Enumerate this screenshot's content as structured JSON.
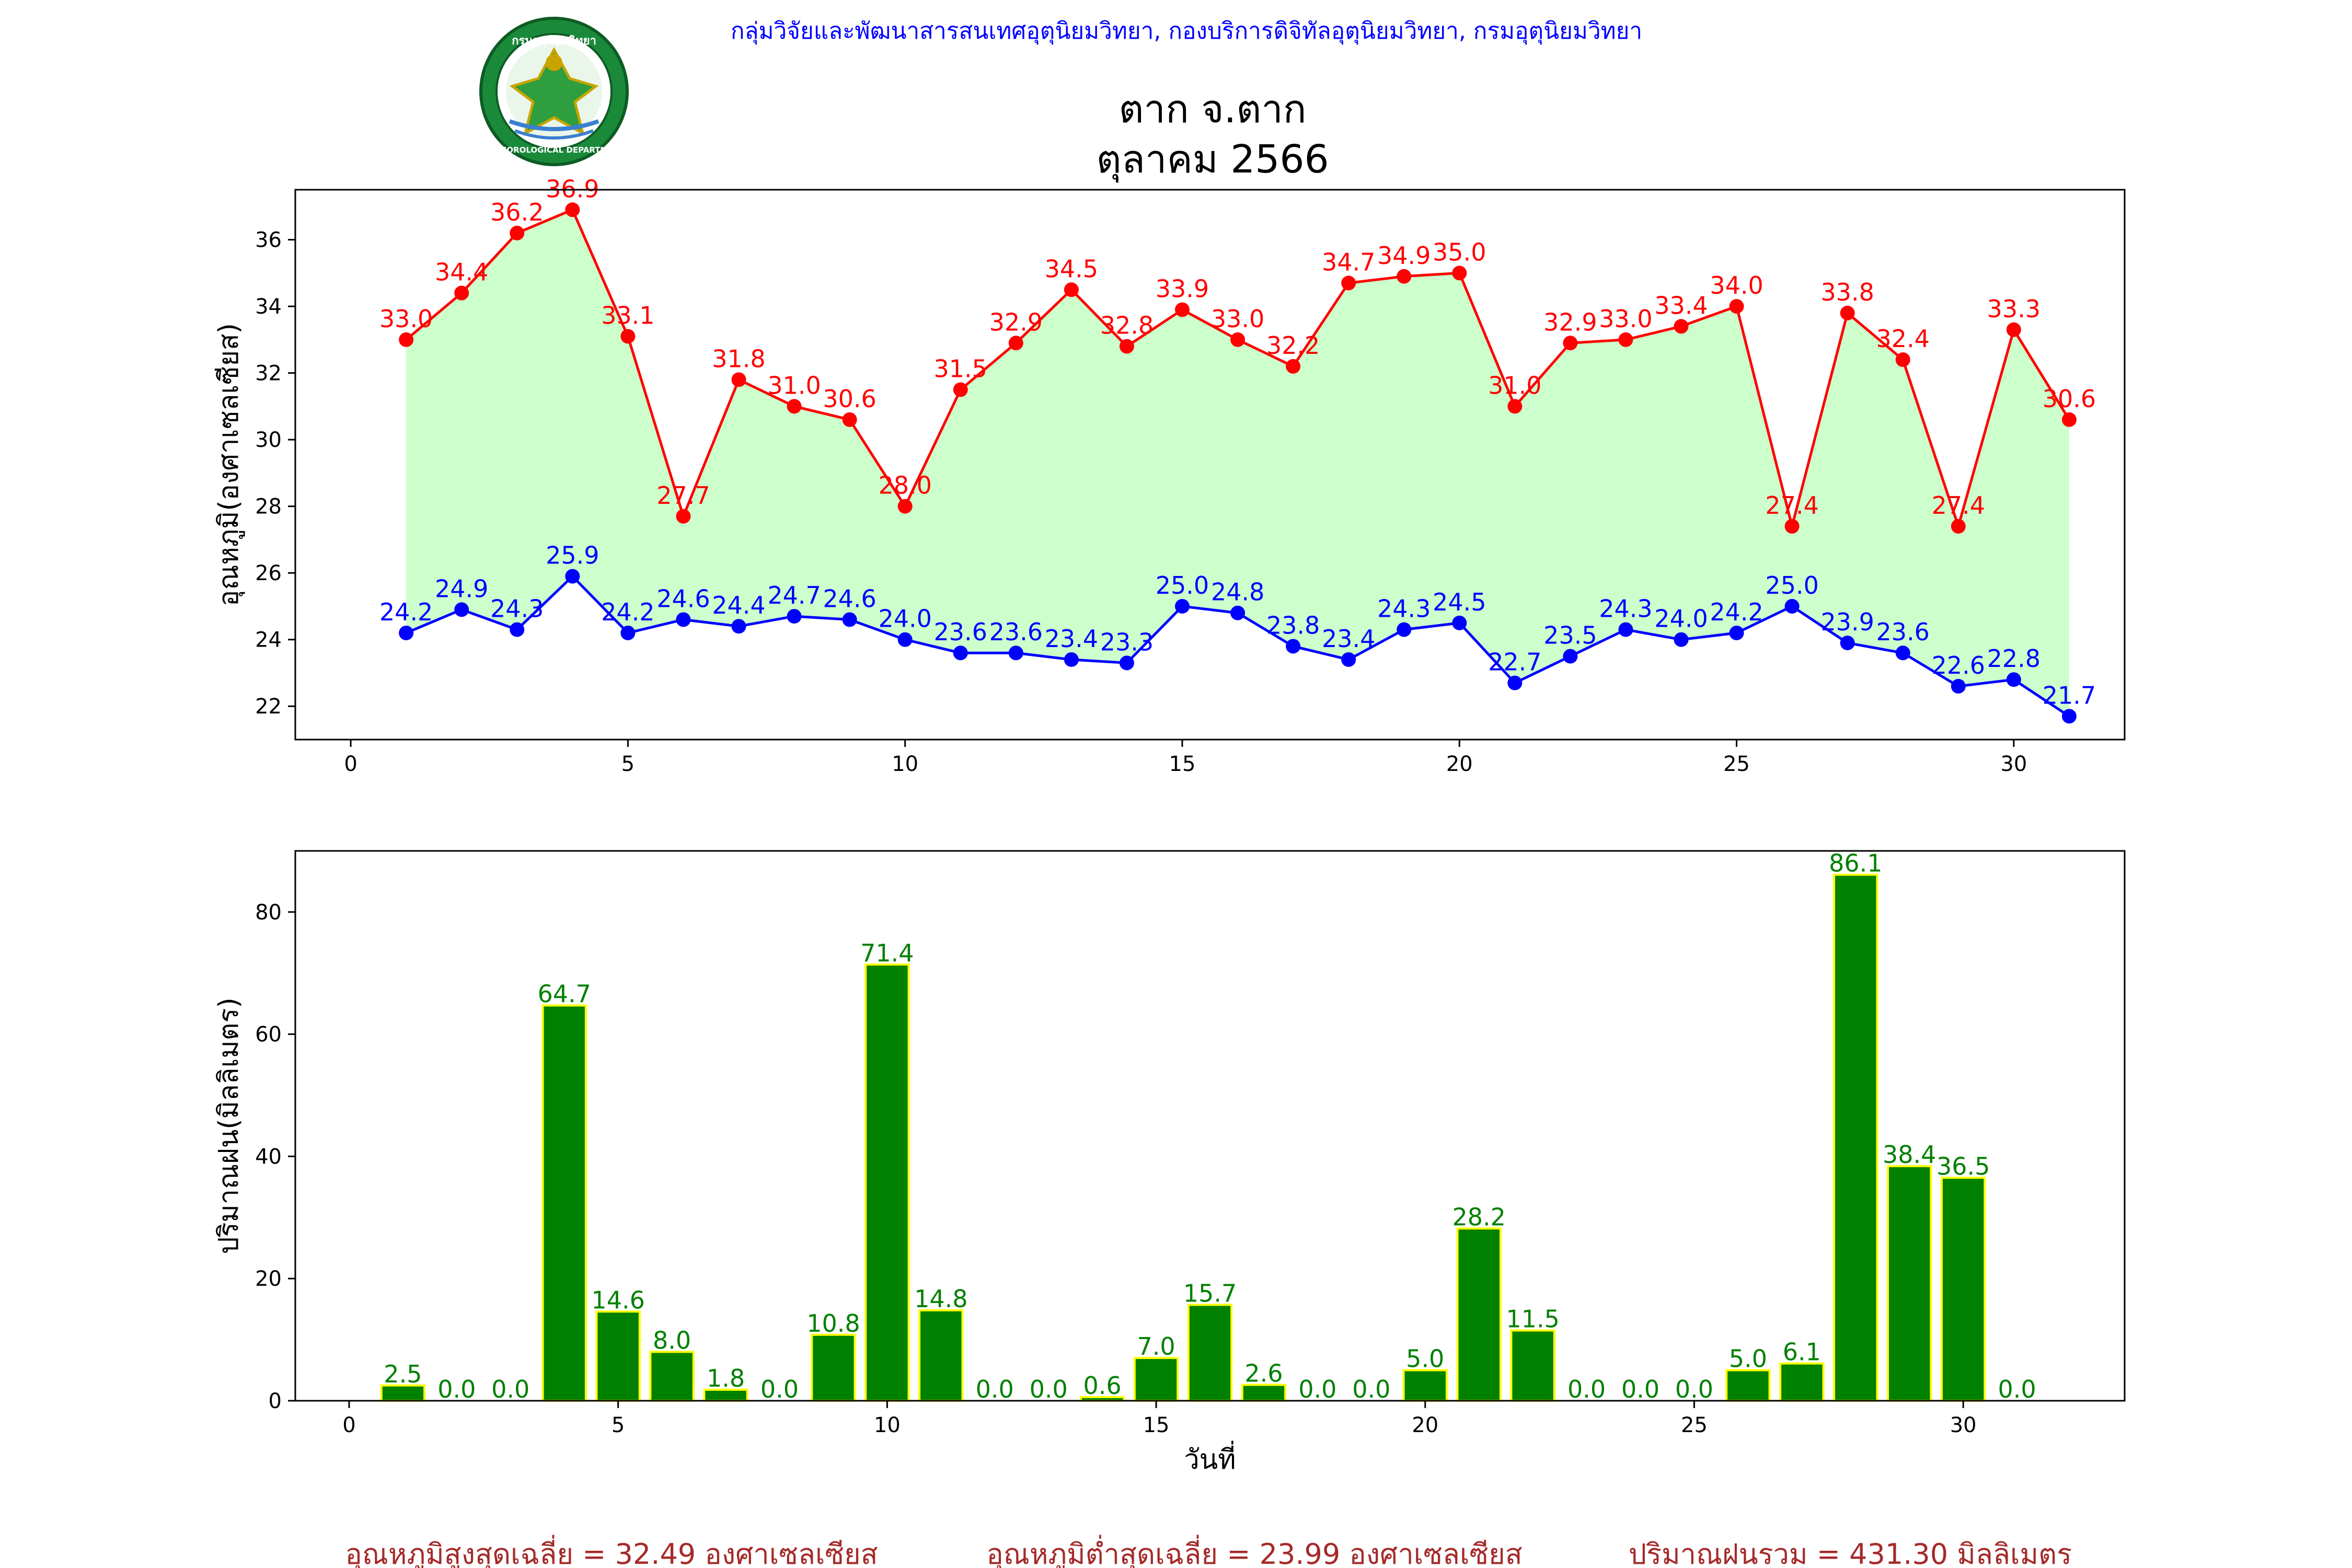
{
  "header": {
    "agency": "กลุ่มวิจัยและพัฒนาสารสนเทศอุตุนิยมวิทยา, กองบริการดิจิทัลอุตุนิยมวิทยา, กรมอุตุนิยมวิทยา",
    "title_line1": "ตาก จ.ตาก",
    "title_line2": "ตุลาคม 2566",
    "logo_text": "METEOROLOGICAL DEPARTMENT",
    "logo_thai": "กรมอุตุนิยมวิทยา"
  },
  "colors": {
    "max_line": "#ff0000",
    "min_line": "#0000ff",
    "fill": "#ccffcc",
    "bar": "#008000",
    "bar_edge": "#ffff00",
    "bar_label": "#008000",
    "footer": "#a52a2a",
    "header_text": "#0000ff"
  },
  "footer": {
    "avg_max": "อุณหภูมิสูงสุดเฉลี่ย = 32.49 องศาเซลเซียส",
    "avg_min": "อุณหภูมิต่ำสุดเฉลี่ย = 23.99 องศาเซลเซียส",
    "rain_total": "ปริมาณฝนรวม = 431.30 มิลลิเมตร"
  },
  "chart_data": [
    {
      "type": "line",
      "xlabel": "",
      "ylabel": "อุณหภูมิ(องศาเซลเซียส)",
      "xlim": [
        -1,
        32
      ],
      "ylim": [
        21,
        37.5
      ],
      "xticks": [
        0,
        5,
        10,
        15,
        20,
        25,
        30
      ],
      "yticks": [
        22,
        24,
        26,
        28,
        30,
        32,
        34,
        36
      ],
      "grid": false,
      "x": [
        1,
        2,
        3,
        4,
        5,
        6,
        7,
        8,
        9,
        10,
        11,
        12,
        13,
        14,
        15,
        16,
        17,
        18,
        19,
        20,
        21,
        22,
        23,
        24,
        25,
        26,
        27,
        28,
        29,
        30,
        31
      ],
      "series": [
        {
          "values": [
            33.0,
            34.4,
            36.2,
            36.9,
            33.1,
            27.7,
            31.8,
            31.0,
            30.6,
            28.0,
            31.5,
            32.9,
            34.5,
            32.8,
            33.9,
            33.0,
            32.2,
            34.7,
            34.9,
            35.0,
            31.0,
            32.9,
            33.0,
            33.4,
            34.0,
            27.4,
            33.8,
            32.4,
            27.4,
            33.3,
            30.6
          ],
          "labels": [
            "33.0",
            "34.4",
            "36.2",
            "36.9",
            "33.1",
            "27.7",
            "31.8",
            "31.0",
            "30.6",
            "28.0",
            "31.5",
            "32.9",
            "34.5",
            "32.8",
            "33.9",
            "33.0",
            "32.2",
            "34.7",
            "34.9",
            "35.0",
            "31.0",
            "32.9",
            "33.0",
            "33.4",
            "34.0",
            "27.4",
            "33.8",
            "32.4",
            "27.4",
            "33.3",
            "30.6"
          ]
        },
        {
          "values": [
            24.2,
            24.9,
            24.3,
            25.9,
            24.2,
            24.6,
            24.4,
            24.7,
            24.6,
            24.0,
            23.6,
            23.6,
            23.4,
            23.3,
            25.0,
            24.8,
            23.8,
            23.4,
            24.3,
            24.5,
            22.7,
            23.5,
            24.3,
            24.0,
            24.2,
            25.0,
            23.9,
            23.6,
            22.6,
            22.8,
            21.7
          ],
          "labels": [
            "24.2",
            "24.9",
            "24.3",
            "25.9",
            "24.2",
            "24.6",
            "24.4",
            "24.7",
            "24.6",
            "24.0",
            "23.6",
            "23.6",
            "23.4",
            "23.3",
            "25.0",
            "24.8",
            "23.8",
            "23.4",
            "24.3",
            "24.5",
            "22.7",
            "23.5",
            "24.3",
            "24.0",
            "24.2",
            "25.0",
            "23.9",
            "23.6",
            "22.6",
            "22.8",
            "21.7"
          ]
        }
      ]
    },
    {
      "type": "bar",
      "xlabel": "วันที่",
      "ylabel": "ปริมาณฝน(มิลลิเมตร)",
      "xlim": [
        -1,
        33
      ],
      "ylim": [
        0,
        90
      ],
      "xticks": [
        0,
        5,
        10,
        15,
        20,
        25,
        30
      ],
      "yticks": [
        0,
        20,
        40,
        60,
        80
      ],
      "grid": false,
      "x": [
        1,
        2,
        3,
        4,
        5,
        6,
        7,
        8,
        9,
        10,
        11,
        12,
        13,
        14,
        15,
        16,
        17,
        18,
        19,
        20,
        21,
        22,
        23,
        24,
        25,
        26,
        27,
        28,
        29,
        30,
        31
      ],
      "values": [
        2.5,
        0.0,
        0.0,
        64.7,
        14.6,
        8.0,
        1.8,
        0.0,
        10.8,
        71.4,
        14.8,
        0.0,
        0.0,
        0.6,
        7.0,
        15.7,
        2.6,
        0.0,
        0.0,
        5.0,
        28.2,
        11.5,
        0.0,
        0.0,
        0.0,
        5.0,
        6.1,
        86.1,
        38.4,
        36.5,
        0.0
      ],
      "labels": [
        "2.5",
        "0.0",
        "0.0",
        "64.7",
        "14.6",
        "8.0",
        "1.8",
        "0.0",
        "10.8",
        "71.4",
        "14.8",
        "0.0",
        "0.0",
        "0.6",
        "7.0",
        "15.7",
        "2.6",
        "0.0",
        "0.0",
        "5.0",
        "28.2",
        "11.5",
        "0.0",
        "0.0",
        "0.0",
        "5.0",
        "6.1",
        "86.1",
        "38.4",
        "36.5",
        "0.0"
      ]
    }
  ]
}
